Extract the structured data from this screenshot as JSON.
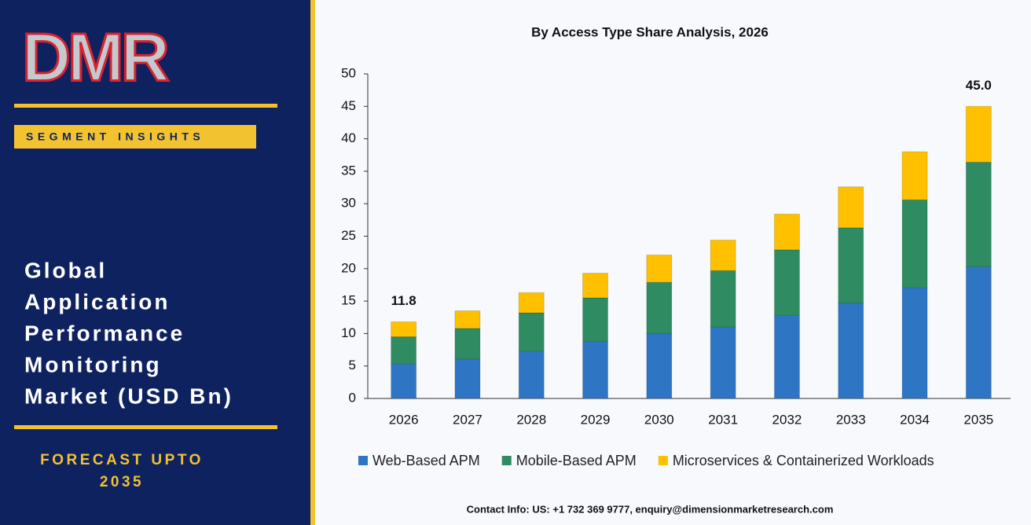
{
  "sidebar": {
    "logo": "DMR",
    "badge": "SEGMENT INSIGHTS",
    "title_lines": [
      "Global",
      "Application",
      "Performance",
      "Monitoring",
      "Market (USD Bn)"
    ],
    "forecast_lines": [
      "FORECAST UPTO",
      "2035"
    ]
  },
  "footer": "Contact Info: US: +1 732 369 9777, enquiry@dimensionmarketresearch.com",
  "chart_data": {
    "type": "stacked-bar",
    "title": "By Access  Type Share Analysis, 2026",
    "categories": [
      "2026",
      "2027",
      "2028",
      "2029",
      "2030",
      "2031",
      "2032",
      "2033",
      "2034",
      "2035"
    ],
    "series": [
      {
        "name": "Web-Based APM",
        "color": "#2e75c4",
        "values": [
          5.3,
          6.1,
          7.3,
          8.8,
          10.0,
          11.0,
          12.8,
          14.7,
          17.1,
          20.3
        ]
      },
      {
        "name": "Mobile-Based APM",
        "color": "#2e8b62",
        "values": [
          4.2,
          4.7,
          5.9,
          6.7,
          7.9,
          8.7,
          10.1,
          11.6,
          13.5,
          16.1
        ]
      },
      {
        "name": "Microservices & Containerized Workloads",
        "color": "#ffc000",
        "values": [
          2.3,
          2.7,
          3.1,
          3.8,
          4.2,
          4.7,
          5.5,
          6.3,
          7.4,
          8.6
        ]
      }
    ],
    "annotations": [
      {
        "x": "2026",
        "y": 11.8,
        "text": "11.8"
      },
      {
        "x": "2035",
        "y": 45,
        "text": "45.0"
      }
    ],
    "ylim": [
      0,
      50
    ],
    "yticks": [
      0,
      5,
      10,
      15,
      20,
      25,
      30,
      35,
      40,
      45,
      50
    ],
    "grid": false,
    "legend": "bottom"
  }
}
